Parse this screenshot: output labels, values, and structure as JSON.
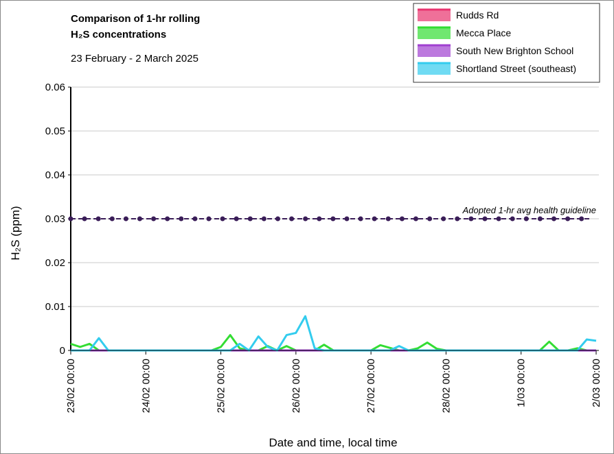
{
  "chart_data": {
    "type": "line",
    "title": [
      "Comparison of 1-hr rolling",
      "H₂S concentrations"
    ],
    "subtitle": "23 February - 2 March 2025",
    "xlabel": "Date and time, local time",
    "ylabel": "H₂S (ppm)",
    "xlim": [
      0,
      7
    ],
    "xticks": [
      {
        "value": 0,
        "label": "23/02 00:00"
      },
      {
        "value": 1,
        "label": "24/02 00:00"
      },
      {
        "value": 2,
        "label": "25/02 00:00"
      },
      {
        "value": 3,
        "label": "26/02 00:00"
      },
      {
        "value": 4,
        "label": "27/02 00:00"
      },
      {
        "value": 5,
        "label": "28/02 00:00"
      },
      {
        "value": 6,
        "label": "1/03 00:00"
      },
      {
        "value": 7,
        "label": "2/03 00:00"
      }
    ],
    "ylim": [
      0,
      0.06
    ],
    "yticks": [
      0,
      0.01,
      0.02,
      0.03,
      0.04,
      0.05,
      0.06
    ],
    "grid": true,
    "legend": "top-right",
    "guideline": {
      "value": 0.03,
      "label": "Adopted 1-hr avg health guideline",
      "color": "#3a1d58"
    },
    "x": [
      0,
      0.125,
      0.25,
      0.375,
      0.5,
      0.625,
      0.75,
      0.875,
      1,
      1.125,
      1.25,
      1.375,
      1.5,
      1.625,
      1.75,
      1.875,
      2,
      2.125,
      2.25,
      2.375,
      2.5,
      2.625,
      2.75,
      2.875,
      3,
      3.125,
      3.25,
      3.375,
      3.5,
      3.625,
      3.75,
      3.875,
      4,
      4.125,
      4.25,
      4.375,
      4.5,
      4.625,
      4.75,
      4.875,
      5,
      5.125,
      5.25,
      5.375,
      5.5,
      5.625,
      5.75,
      5.875,
      6,
      6.125,
      6.25,
      6.375,
      6.5,
      6.625,
      6.75,
      6.875,
      7
    ],
    "series": [
      {
        "name": "Rudds Rd",
        "color": "#e8336e",
        "values": [
          0,
          0,
          0,
          0,
          0,
          0,
          0,
          0,
          0,
          0,
          0,
          0,
          0,
          0,
          0,
          0,
          0,
          0,
          0,
          0,
          0,
          0,
          0,
          0,
          0,
          0,
          0,
          0,
          0,
          0,
          0,
          0,
          0,
          0,
          0,
          0,
          0,
          0,
          0,
          0,
          0,
          0,
          0,
          0,
          0,
          0,
          0,
          0,
          0,
          0,
          0,
          0,
          0,
          0,
          0,
          0,
          0
        ]
      },
      {
        "name": "Mecca Place",
        "color": "#33dd33",
        "values": [
          0.0015,
          0.0008,
          0.0015,
          0,
          0,
          0,
          0,
          0,
          0,
          0,
          0,
          0,
          0,
          0,
          0,
          0,
          0.0008,
          0.0035,
          0.0005,
          0,
          0,
          0.001,
          0,
          0.001,
          0,
          0,
          0,
          0.0013,
          0,
          0,
          0,
          0,
          0,
          0.0012,
          0.0006,
          0,
          0,
          0.0005,
          0.0018,
          0.0004,
          0,
          0,
          0,
          0,
          0,
          0,
          0,
          0,
          0,
          0,
          0,
          0.002,
          0,
          0,
          0.0005,
          0,
          0
        ]
      },
      {
        "name": "South New Brighton School",
        "color": "#a040d0",
        "values": [
          0,
          0,
          0,
          0,
          0,
          0,
          0,
          0,
          0,
          0,
          0,
          0,
          0,
          0,
          0,
          0,
          0,
          0,
          0,
          0,
          0,
          0,
          0,
          0,
          0,
          0,
          0,
          0,
          0,
          0,
          0,
          0,
          0,
          0,
          0,
          0,
          0,
          0,
          0,
          0,
          0,
          0,
          0,
          0,
          0,
          0,
          0,
          0,
          0,
          0,
          0,
          0,
          0,
          0,
          0,
          0,
          0
        ]
      },
      {
        "name": "Shortland Street (southeast)",
        "color": "#33ccee",
        "values": [
          0,
          0,
          0,
          0.0028,
          0,
          0,
          0,
          0,
          0,
          0,
          0,
          0,
          0,
          0,
          0,
          0,
          0,
          0,
          0.0015,
          0,
          0.0032,
          0.0008,
          0,
          0.0035,
          0.004,
          0.0078,
          0.0005,
          0,
          0,
          0,
          0,
          0,
          0,
          0,
          0,
          0.001,
          0,
          0,
          0,
          0,
          0,
          0,
          0,
          0,
          0,
          0,
          0,
          0,
          0,
          0,
          0,
          0,
          0,
          0,
          0,
          0.0025,
          0.0022
        ]
      }
    ]
  }
}
